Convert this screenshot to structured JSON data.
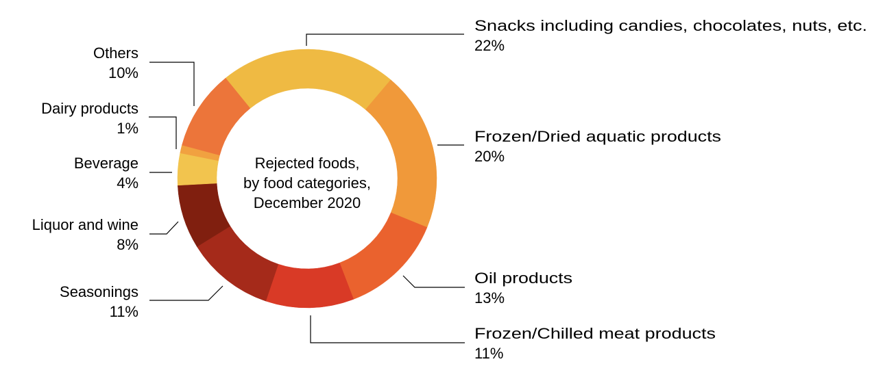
{
  "chart_data": {
    "type": "pie",
    "variant": "donut",
    "title": "Rejected foods, by food categories, December 2020",
    "center_text": [
      "Rejected foods,",
      "by food categories,",
      "December 2020"
    ],
    "unit": "%",
    "categories": [
      "Snacks including candies, chocolates, nuts, etc.",
      "Frozen/Dried aquatic products",
      "Oil products",
      "Frozen/Chilled meat products",
      "Seasonings",
      "Liquor and wine",
      "Beverage",
      "Dairy products",
      "Others"
    ],
    "values": [
      22,
      20,
      13,
      11,
      11,
      8,
      4,
      1,
      10
    ],
    "value_labels": [
      "22%",
      "20%",
      "13%",
      "11%",
      "11%",
      "8%",
      "4%",
      "1%",
      "10%"
    ],
    "colors": [
      "#EFBA43",
      "#F0993A",
      "#EA622E",
      "#D93A26",
      "#A52A1A",
      "#801F0F",
      "#F2C44E",
      "#F1A140",
      "#EC753A"
    ],
    "start_angle_deg": -39,
    "direction": "clockwise",
    "legend": "none (direct labels with leader lines)"
  },
  "labels": {
    "snacks": {
      "name": "Snacks including candies, chocolates, nuts, etc.",
      "pct": "22%"
    },
    "aquatic": {
      "name": "Frozen/Dried aquatic products",
      "pct": "20%"
    },
    "oil": {
      "name": "Oil products",
      "pct": "13%"
    },
    "meat": {
      "name": "Frozen/Chilled meat products",
      "pct": "11%"
    },
    "seasonings": {
      "name": "Seasonings",
      "pct": "11%"
    },
    "liquor": {
      "name": "Liquor and wine",
      "pct": "8%"
    },
    "beverage": {
      "name": "Beverage",
      "pct": "4%"
    },
    "dairy": {
      "name": "Dairy products",
      "pct": "1%"
    },
    "others": {
      "name": "Others",
      "pct": "10%"
    }
  },
  "center": {
    "line1": "Rejected foods,",
    "line2": "by food categories,",
    "line3": "December 2020"
  }
}
